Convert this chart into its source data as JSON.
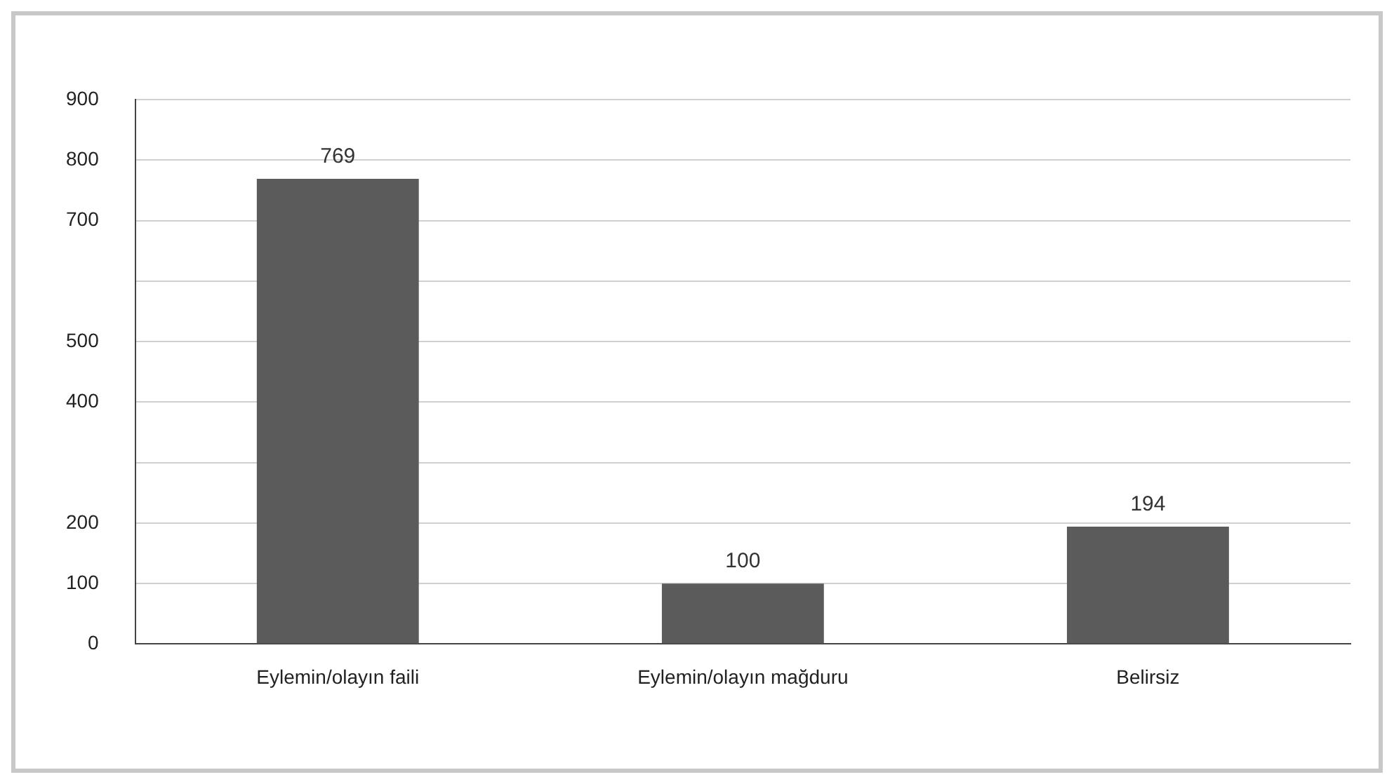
{
  "chart_data": {
    "type": "bar",
    "categories": [
      "Eylemin/olayın faili",
      "Eylemin/olayın mağduru",
      "Belirsiz"
    ],
    "values": [
      769,
      100,
      194
    ],
    "color": "#5b5b5b",
    "ylim": [
      0,
      900
    ],
    "yticks": [
      0,
      100,
      200,
      {
        "value": 300,
        "label": null
      },
      400,
      500,
      {
        "value": 600,
        "label": null
      },
      700,
      800,
      900
    ],
    "grid": "y",
    "data_labels": true,
    "legend": false
  }
}
